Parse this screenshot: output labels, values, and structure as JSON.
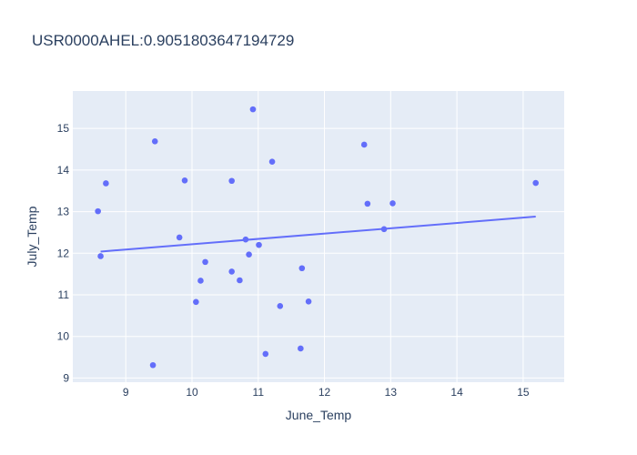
{
  "chart_data": {
    "type": "scatter",
    "title": "USR0000AHEL:0.9051803647194729",
    "xlabel": "June_Temp",
    "ylabel": "July_Temp",
    "xlim": [
      8.2,
      15.62
    ],
    "ylim": [
      8.9,
      15.9
    ],
    "xticks": [
      9,
      10,
      11,
      12,
      13,
      14,
      15
    ],
    "yticks": [
      9,
      10,
      11,
      12,
      13,
      14,
      15
    ],
    "grid": true,
    "colors": {
      "plot_bg": "#e5ecf6",
      "marker": "#636efa",
      "line": "#636efa",
      "grid": "#ffffff"
    },
    "points": [
      {
        "x": 8.58,
        "y": 13.01
      },
      {
        "x": 8.62,
        "y": 11.93
      },
      {
        "x": 8.7,
        "y": 13.68
      },
      {
        "x": 9.41,
        "y": 9.31
      },
      {
        "x": 9.44,
        "y": 14.69
      },
      {
        "x": 9.81,
        "y": 12.38
      },
      {
        "x": 9.89,
        "y": 13.75
      },
      {
        "x": 10.06,
        "y": 10.83
      },
      {
        "x": 10.13,
        "y": 11.34
      },
      {
        "x": 10.2,
        "y": 11.79
      },
      {
        "x": 10.6,
        "y": 13.74
      },
      {
        "x": 10.6,
        "y": 11.56
      },
      {
        "x": 10.72,
        "y": 11.35
      },
      {
        "x": 10.81,
        "y": 12.33
      },
      {
        "x": 10.86,
        "y": 11.97
      },
      {
        "x": 10.92,
        "y": 15.46
      },
      {
        "x": 11.01,
        "y": 12.2
      },
      {
        "x": 11.11,
        "y": 9.58
      },
      {
        "x": 11.21,
        "y": 14.2
      },
      {
        "x": 11.33,
        "y": 10.73
      },
      {
        "x": 11.64,
        "y": 9.71
      },
      {
        "x": 11.66,
        "y": 11.64
      },
      {
        "x": 11.76,
        "y": 10.84
      },
      {
        "x": 12.6,
        "y": 14.61
      },
      {
        "x": 12.65,
        "y": 13.19
      },
      {
        "x": 12.9,
        "y": 12.58
      },
      {
        "x": 13.03,
        "y": 13.2
      },
      {
        "x": 15.19,
        "y": 13.69
      }
    ],
    "trendline": {
      "x": [
        8.62,
        15.19
      ],
      "y": [
        12.04,
        12.88
      ]
    }
  }
}
